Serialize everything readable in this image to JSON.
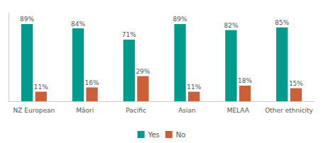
{
  "chart_data": {
    "type": "bar",
    "categories": [
      "NZ European",
      "Māori",
      "Pacific",
      "Asian",
      "MELAA",
      "Other ethnicity"
    ],
    "series": [
      {
        "name": "Yes",
        "color": "#009B8D",
        "values": [
          89,
          84,
          71,
          89,
          82,
          85
        ],
        "value_labels": [
          "89%",
          "84%",
          "71%",
          "89%",
          "82%",
          "85%"
        ]
      },
      {
        "name": "No",
        "color": "#C9603A",
        "values": [
          11,
          16,
          29,
          11,
          18,
          15
        ],
        "value_labels": [
          "11%",
          "16%",
          "29%",
          "11%",
          "18%",
          "15%"
        ]
      }
    ],
    "ylim": [
      0,
      102
    ],
    "grid": false,
    "legend": "bottom",
    "data_labels": true,
    "tick_labels": "x"
  }
}
